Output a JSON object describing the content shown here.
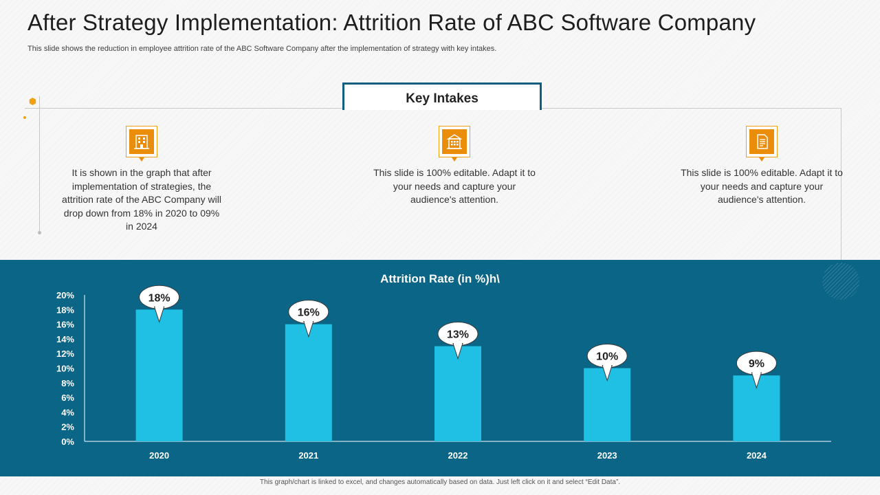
{
  "slide": {
    "title": "After Strategy Implementation: Attrition Rate of ABC Software Company",
    "subtitle": "This slide shows the reduction in employee  attrition rate of the ABC  Software Company after the  implementation of strategy with key  intakes.",
    "footer_note": "This graph/chart is linked to excel, and changes automatically based on data. Just left click on it and select “Edit Data”."
  },
  "key_intakes": {
    "heading": "Key Intakes",
    "items": [
      {
        "icon": "office-building-icon",
        "text": "It is shown in the graph that after implementation of strategies, the attrition rate of the ABC Company will drop down from 18% in 2020 to 09% in 2024"
      },
      {
        "icon": "building-icon",
        "text": "This slide is 100% editable. Adapt it to your needs and capture your audience's attention."
      },
      {
        "icon": "document-icon",
        "text": "This slide is 100% editable. Adapt it to your needs and capture your audience's attention."
      }
    ]
  },
  "colors": {
    "accent_orange": "#ea8d0b",
    "panel_blue": "#0b6587",
    "bar_cyan": "#1fc0e3",
    "frame_navy": "#0f5d7f"
  },
  "chart_data": {
    "type": "bar",
    "title": "Attrition  Rate (in %)h\\",
    "categories": [
      "2020",
      "2021",
      "2022",
      "2023",
      "2024"
    ],
    "values": [
      18,
      16,
      13,
      10,
      9
    ],
    "data_labels": [
      "18%",
      "16%",
      "13%",
      "10%",
      "9%"
    ],
    "y_ticks": [
      "0%",
      "2%",
      "4%",
      "6%",
      "8%",
      "10%",
      "12%",
      "14%",
      "16%",
      "18%",
      "20%"
    ],
    "ylim": [
      0,
      20
    ],
    "xlabel": "",
    "ylabel": "",
    "grid": false,
    "legend": "none"
  }
}
